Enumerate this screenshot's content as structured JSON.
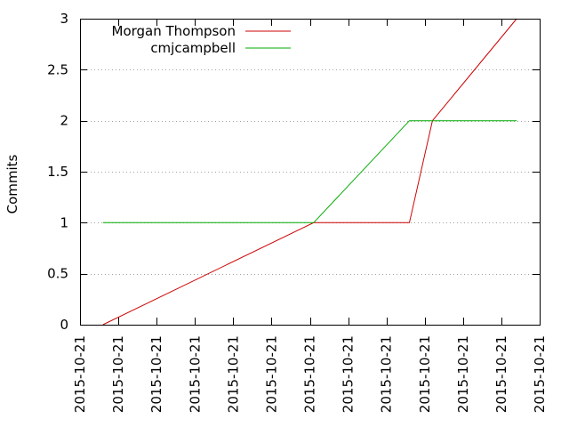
{
  "chart_data": {
    "type": "line",
    "ylabel": "Commits",
    "ylim": [
      0,
      3
    ],
    "yticks": [
      "0",
      "0.5",
      "1",
      "1.5",
      "2",
      "2.5",
      "3"
    ],
    "xlim": [
      0,
      12
    ],
    "xtick_labels": [
      "2015-10-21",
      "2015-10-21",
      "2015-10-21",
      "2015-10-21",
      "2015-10-21",
      "2015-10-21",
      "2015-10-21",
      "2015-10-21",
      "2015-10-21",
      "2015-10-21",
      "2015-10-21",
      "2015-10-21",
      "2015-10-21"
    ],
    "grid": {
      "y": true,
      "x": false,
      "style": "dotted"
    },
    "legend_position": "top-left",
    "series": [
      {
        "name": "Morgan Thompson",
        "color": "#cc0000",
        "points": [
          [
            0.6,
            0
          ],
          [
            6.1,
            1
          ],
          [
            8.6,
            1
          ],
          [
            9.2,
            2
          ],
          [
            11.4,
            3
          ]
        ]
      },
      {
        "name": "cmjcampbell",
        "color": "#00aa00",
        "points": [
          [
            0.6,
            1
          ],
          [
            6.1,
            1
          ],
          [
            8.6,
            2
          ],
          [
            11.4,
            2
          ]
        ]
      }
    ]
  }
}
